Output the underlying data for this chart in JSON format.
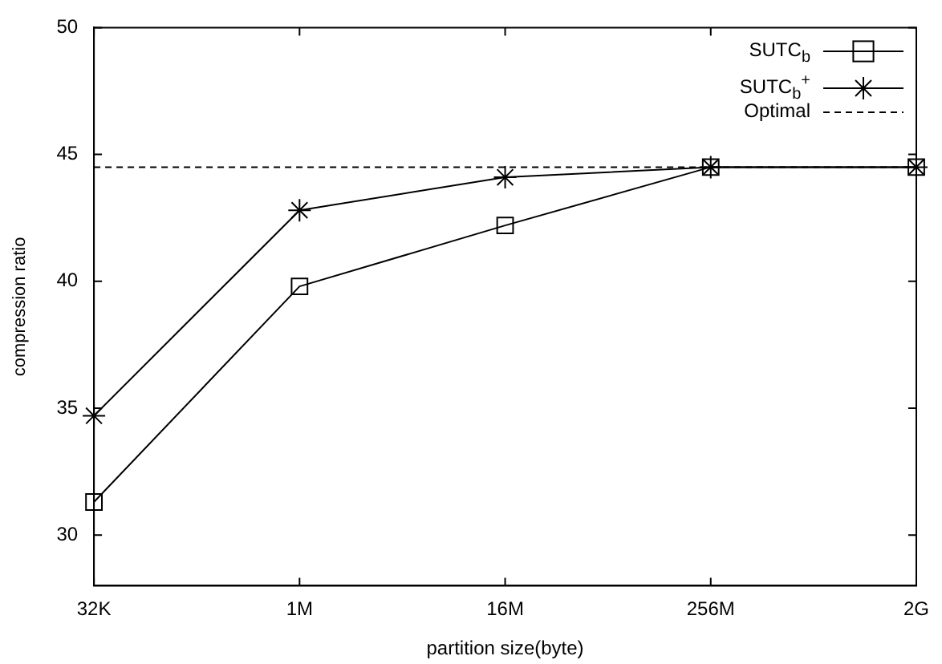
{
  "chart_data": {
    "type": "line",
    "xlabel": "partition size(byte)",
    "ylabel": "compression ratio",
    "categories": [
      "32K",
      "1M",
      "16M",
      "256M",
      "2G"
    ],
    "series": [
      {
        "name": "SUTC$_{b}$",
        "color": "#000000",
        "marker": "square",
        "values": [
          31.3,
          39.8,
          42.2,
          44.5,
          44.5
        ]
      },
      {
        "name": "SUTC$_{b}$$^{+}$",
        "color": "#000000",
        "marker": "cross",
        "values": [
          34.7,
          42.8,
          44.1,
          44.5,
          44.5
        ]
      }
    ],
    "ref_lines": [
      {
        "axis": "y",
        "value": 44.5,
        "label": "Optimal",
        "line_style": "dashed",
        "color": "#000000"
      }
    ],
    "ylim": [
      28,
      50
    ],
    "yticks": [
      30,
      35,
      40,
      45,
      50
    ],
    "legend": "top right",
    "line_style": "solid"
  }
}
